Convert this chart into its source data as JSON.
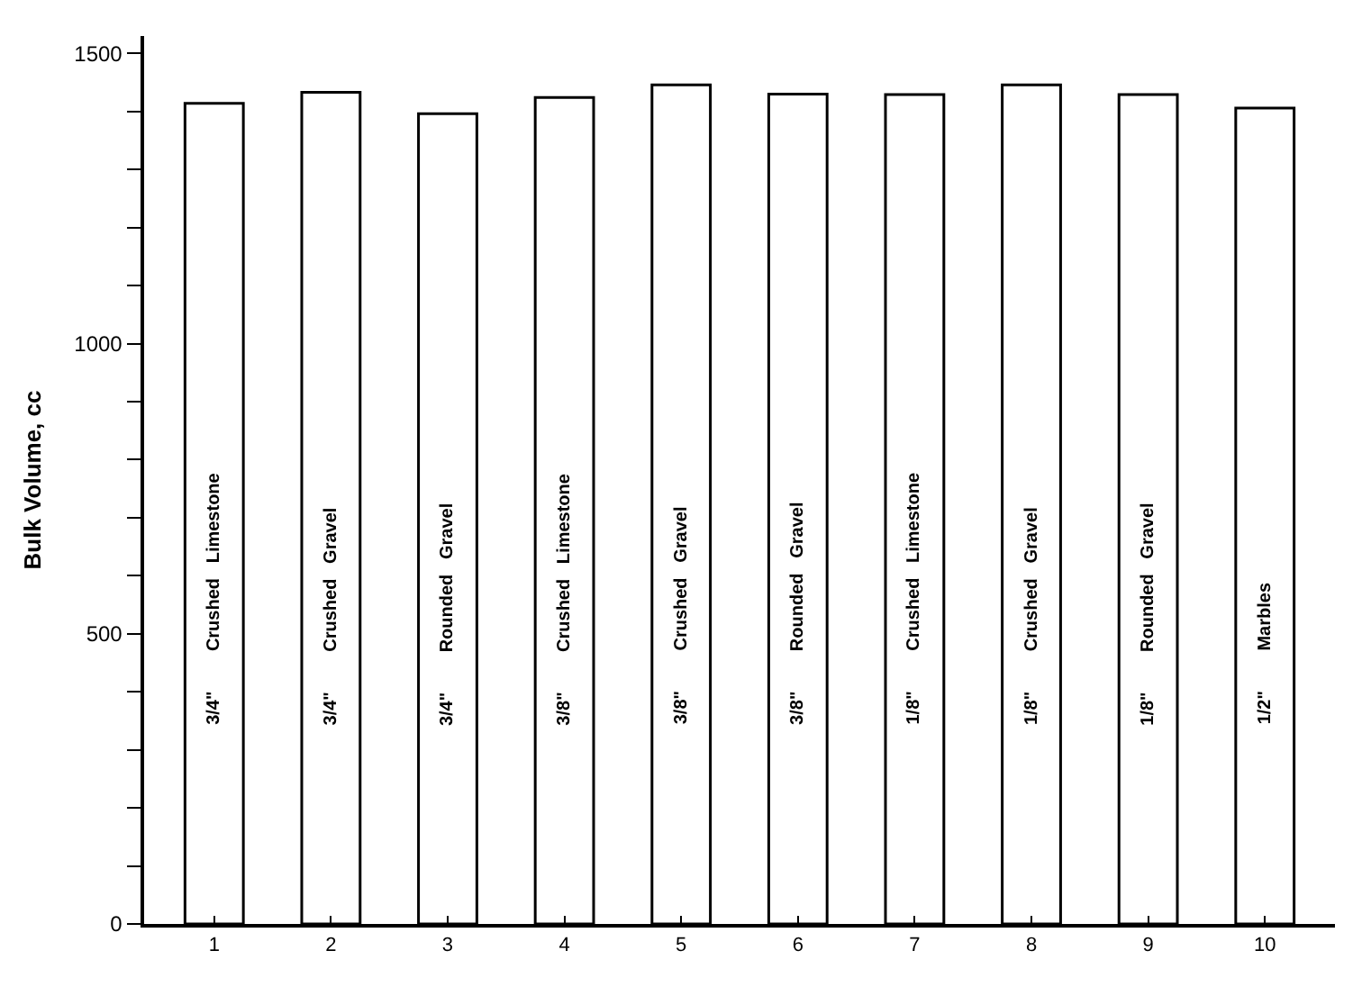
{
  "chart_data": {
    "type": "bar",
    "ylabel": "Bulk Volume, cc",
    "categories": [
      "1",
      "2",
      "3",
      "4",
      "5",
      "6",
      "7",
      "8",
      "9",
      "10"
    ],
    "values": [
      1414,
      1433,
      1396,
      1424,
      1446,
      1430,
      1429,
      1446,
      1429,
      1406
    ],
    "colors": [
      "#ffffff",
      "#ffffff",
      "#ffffff",
      "#ffffff",
      "#ffffff",
      "#ffffff",
      "#ffffff",
      "#ffffff",
      "#ffffff",
      "#ffffff"
    ],
    "ylim": [
      0,
      1530
    ],
    "yticks": [
      0,
      {
        "value": 100,
        "label": null
      },
      {
        "value": 200,
        "label": null
      },
      {
        "value": 300,
        "label": null
      },
      {
        "value": 400,
        "label": null
      },
      500,
      {
        "value": 600,
        "label": null
      },
      {
        "value": 700,
        "label": null
      },
      {
        "value": 800,
        "label": null
      },
      {
        "value": 900,
        "label": null
      },
      1000,
      {
        "value": 1100,
        "label": null
      },
      {
        "value": 1200,
        "label": null
      },
      {
        "value": 1300,
        "label": null
      },
      {
        "value": 1400,
        "label": null
      },
      1500
    ],
    "annotations": [
      "3/4\"        Crushed   Limestone",
      "3/4\"        Crushed   Gravel",
      "3/4\"        Rounded   Gravel",
      "3/8\"        Crushed   Limestone",
      "3/8\"        Crushed   Gravel",
      "3/8\"        Rounded   Gravel",
      "1/8\"        Crushed   Limestone",
      "1/8\"        Crushed   Gravel",
      "1/8\"        Rounded   Gravel",
      "1/2\"        Marbles"
    ]
  }
}
